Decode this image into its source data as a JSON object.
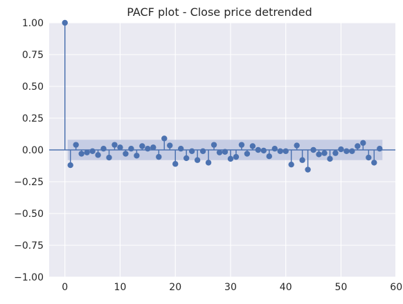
{
  "chart_data": {
    "type": "scatter",
    "subtype": "stem",
    "title": "PACF plot - Close price detrended",
    "xlabel": "",
    "ylabel": "",
    "xlim": [
      -2.85,
      59.85
    ],
    "ylim": [
      -1.0,
      1.0
    ],
    "xticks": [
      0,
      10,
      20,
      30,
      40,
      50,
      60
    ],
    "yticks": [
      -1.0,
      -0.75,
      -0.5,
      -0.25,
      0.0,
      0.25,
      0.5,
      0.75,
      1.0
    ],
    "ytick_labels": [
      "−1.00",
      "−0.75",
      "−0.50",
      "−0.25",
      "0.00",
      "0.25",
      "0.50",
      "0.75",
      "1.00"
    ],
    "grid": true,
    "legend": "none",
    "confidence_band": {
      "lower": -0.08,
      "upper": 0.08,
      "x_from": 0.5,
      "x_to": 57.5
    },
    "series": [
      {
        "x": [
          0,
          1,
          2,
          3,
          4,
          5,
          6,
          7,
          8,
          9,
          10,
          11,
          12,
          13,
          14,
          15,
          16,
          17,
          18,
          19,
          20,
          21,
          22,
          23,
          24,
          25,
          26,
          27,
          28,
          29,
          30,
          31,
          32,
          33,
          34,
          35,
          36,
          37,
          38,
          39,
          40,
          41,
          42,
          43,
          44,
          45,
          46,
          47,
          48,
          49,
          50,
          51,
          52,
          53,
          54,
          55,
          56,
          57
        ],
        "values": [
          1.0,
          -0.12,
          0.04,
          -0.03,
          -0.02,
          -0.01,
          -0.04,
          0.01,
          -0.06,
          0.04,
          0.02,
          -0.03,
          0.01,
          -0.045,
          0.03,
          0.01,
          0.02,
          -0.055,
          0.09,
          0.035,
          -0.11,
          0.01,
          -0.065,
          -0.01,
          -0.08,
          -0.01,
          -0.1,
          0.04,
          -0.02,
          -0.015,
          -0.07,
          -0.055,
          0.04,
          -0.03,
          0.03,
          0.0,
          -0.005,
          -0.05,
          0.01,
          -0.01,
          -0.01,
          -0.115,
          0.035,
          -0.08,
          -0.155,
          0.0,
          -0.035,
          -0.025,
          -0.07,
          -0.025,
          0.005,
          -0.01,
          -0.01,
          0.03,
          0.055,
          -0.06,
          -0.1,
          0.01
        ]
      }
    ]
  },
  "colors": {
    "background": "#ffffff",
    "plot_area": "#eaeaf2",
    "grid": "#ffffff",
    "marker": "#4c72b0",
    "band": "#c0c8e2",
    "text": "#262626"
  }
}
